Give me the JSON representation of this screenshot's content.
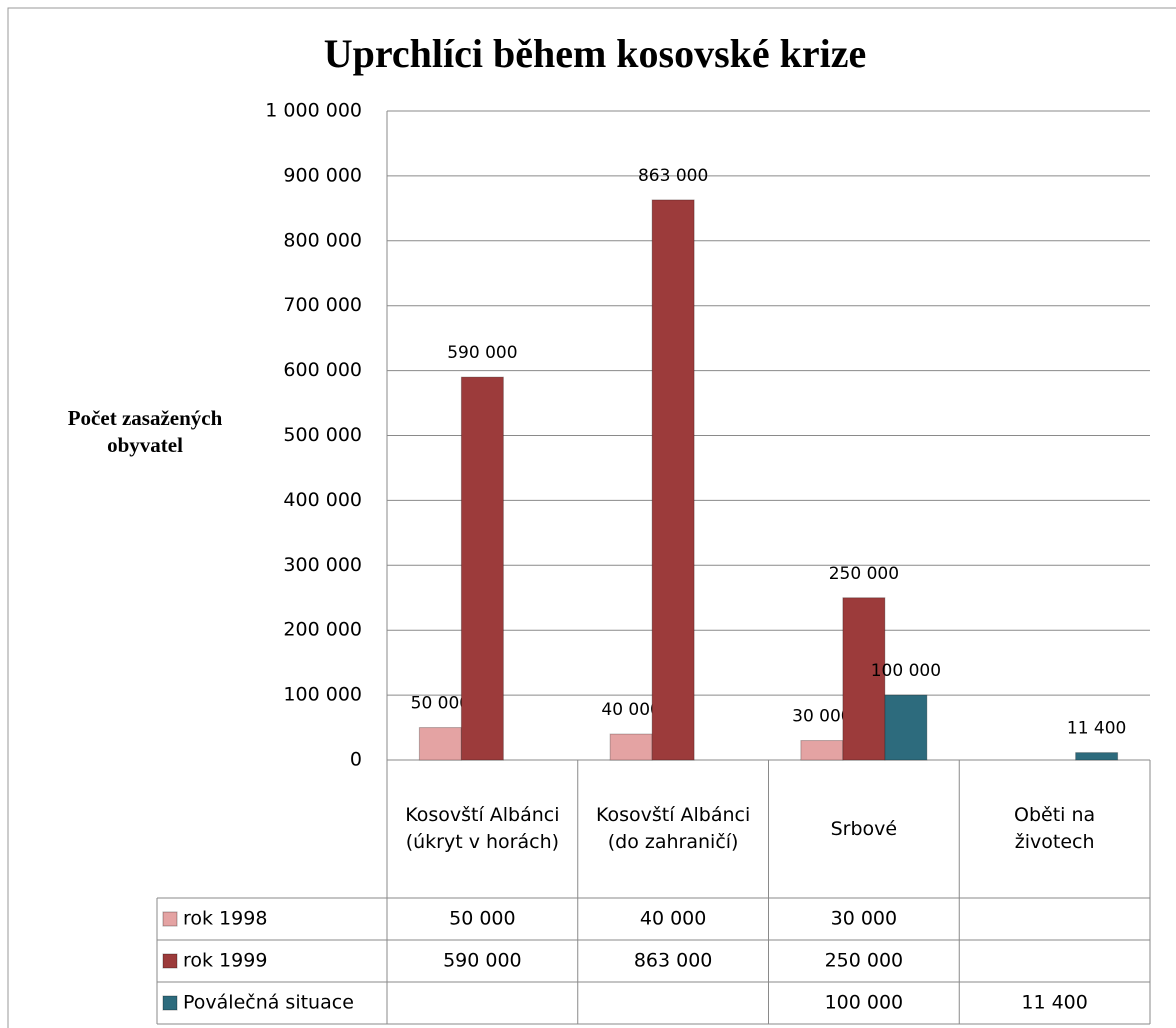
{
  "chart_data": {
    "type": "bar",
    "title": "Uprchlíci během kosovské krize",
    "y_label": "Počet zasažených obyvatel",
    "categories": [
      "Kosovští Albánci (úkryt v horách)",
      "Kosovští Albánci (do zahraničí)",
      "Srbové",
      "Oběti na životech"
    ],
    "series": [
      {
        "name": "rok 1998",
        "color": "#e4a3a3",
        "values": [
          50000,
          40000,
          30000,
          null
        ],
        "value_labels": [
          "50 000",
          "40 000",
          "30 000",
          null
        ]
      },
      {
        "name": "rok 1999",
        "color": "#9c3b3b",
        "values": [
          590000,
          863000,
          250000,
          null
        ],
        "value_labels": [
          "590 000",
          "863 000",
          "250 000",
          null
        ]
      },
      {
        "name": "Poválečná situace",
        "color": "#2d6b7d",
        "values": [
          null,
          null,
          100000,
          11400
        ],
        "value_labels": [
          null,
          null,
          "100 000",
          "11 400"
        ]
      }
    ],
    "ylim": [
      0,
      1000000
    ],
    "yticks": [
      0,
      {
        "value": 100000,
        "label": "100 000"
      },
      {
        "value": 200000,
        "label": "200 000"
      },
      {
        "value": 300000,
        "label": "300 000"
      },
      {
        "value": 400000,
        "label": "400 000"
      },
      {
        "value": 500000,
        "label": "500 000"
      },
      {
        "value": 600000,
        "label": "600 000"
      },
      {
        "value": 700000,
        "label": "700 000"
      },
      {
        "value": 800000,
        "label": "800 000"
      },
      {
        "value": 900000,
        "label": "900 000"
      },
      {
        "value": 1000000,
        "label": "1 000 000"
      }
    ],
    "grid": true,
    "legend": "table"
  }
}
